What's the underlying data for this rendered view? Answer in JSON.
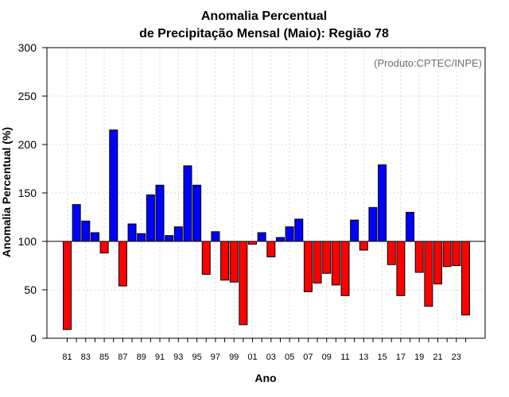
{
  "chart_data": {
    "type": "bar",
    "title": [
      "Anomalia Percentual",
      "de Precipitação Mensal (Maio): Região 78"
    ],
    "xlabel": "Ano",
    "ylabel": "Anomalia Percentual (%)",
    "credit": "(Produto:CPTEC/INPE)",
    "baseline": 100,
    "ylim": [
      0,
      300
    ],
    "yticks": [
      0,
      50,
      100,
      150,
      200,
      250,
      300
    ],
    "categories": [
      "81",
      "82",
      "83",
      "84",
      "85",
      "86",
      "87",
      "88",
      "89",
      "90",
      "91",
      "92",
      "93",
      "94",
      "95",
      "96",
      "97",
      "98",
      "99",
      "00",
      "01",
      "02",
      "03",
      "04",
      "05",
      "06",
      "07",
      "08",
      "09",
      "10",
      "11",
      "12",
      "13",
      "14",
      "15",
      "16",
      "17",
      "18",
      "19",
      "20",
      "21",
      "22",
      "23",
      "24"
    ],
    "xtick_labels": [
      "81",
      "83",
      "85",
      "87",
      "89",
      "91",
      "93",
      "95",
      "97",
      "99",
      "01",
      "03",
      "05",
      "07",
      "09",
      "11",
      "13",
      "15",
      "17",
      "19",
      "21",
      "23"
    ],
    "values": [
      9,
      138,
      121,
      109,
      88,
      215,
      54,
      118,
      108,
      148,
      158,
      106,
      115,
      178,
      158,
      66,
      110,
      60,
      58,
      14,
      97,
      109,
      84,
      104,
      115,
      123,
      48,
      57,
      67,
      55,
      44,
      122,
      91,
      135,
      179,
      76,
      44,
      130,
      68,
      33,
      56,
      74,
      75,
      24
    ],
    "colors": {
      "above": "#0000ff",
      "below": "#ff0000"
    },
    "grid": true
  }
}
